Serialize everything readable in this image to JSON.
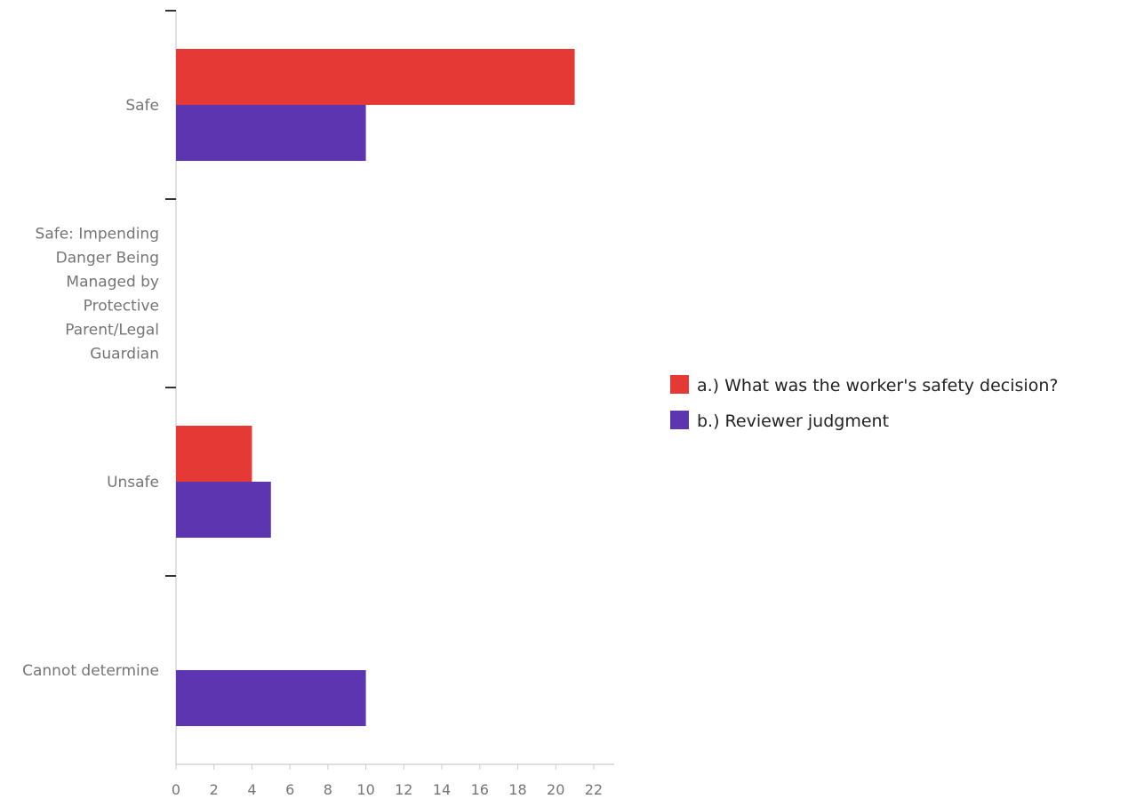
{
  "chart_data": {
    "type": "bar",
    "orientation": "horizontal",
    "categories": [
      [
        "Safe"
      ],
      [
        "Safe: Impending",
        "Danger Being",
        "Managed by",
        "Protective",
        "Parent/Legal",
        "Guardian"
      ],
      [
        "Unsafe"
      ],
      [
        "Cannot determine"
      ]
    ],
    "series": [
      {
        "name": "a.) What was the worker's safety decision?",
        "color": "#e53935",
        "values": [
          21,
          0,
          4,
          0
        ]
      },
      {
        "name": "b.) Reviewer judgment",
        "color": "#5e35b1",
        "values": [
          10,
          0,
          5,
          10
        ]
      }
    ],
    "x_ticks": [
      "0",
      "2",
      "4",
      "6",
      "8",
      "10",
      "12",
      "14",
      "16",
      "18",
      "20",
      "22"
    ],
    "xlim": [
      0,
      22
    ],
    "grid": false,
    "legend_position": "right"
  }
}
